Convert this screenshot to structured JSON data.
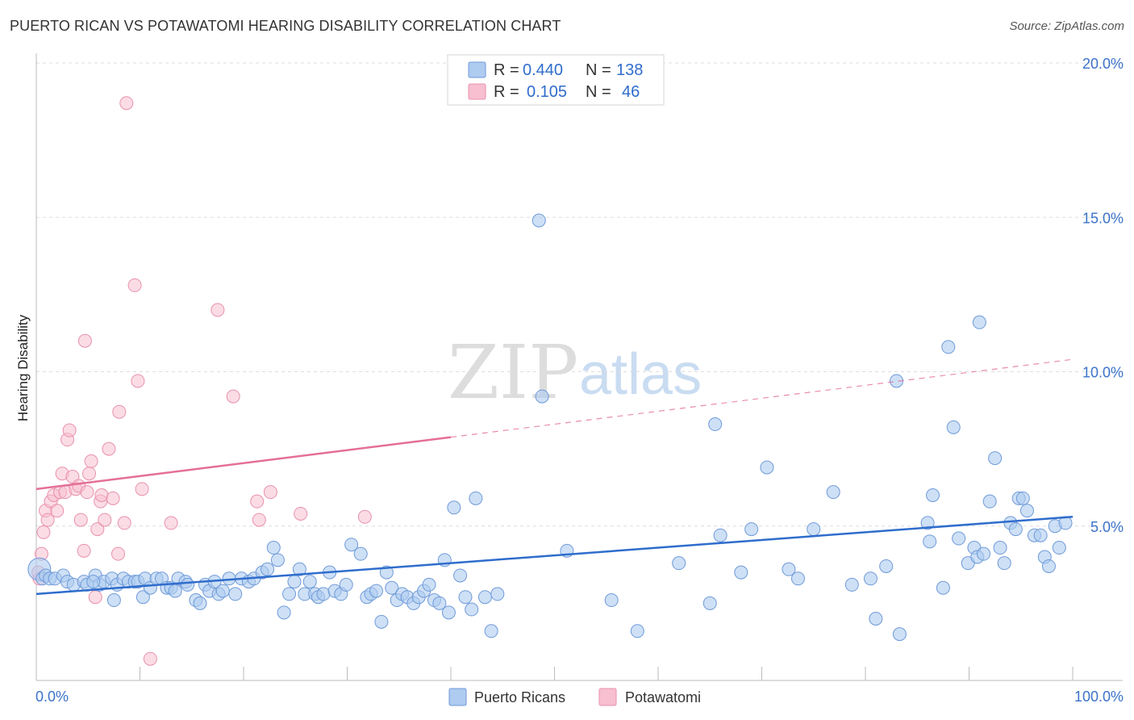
{
  "title": "PUERTO RICAN VS POTAWATOMI HEARING DISABILITY CORRELATION CHART",
  "source": "Source: ZipAtlas.com",
  "watermark": {
    "zip": "ZIP",
    "atlas": "atlas"
  },
  "colors": {
    "blue_fill": "#aecbf0",
    "blue_stroke": "#6f9ad8",
    "blue_line": "#2f6dcc",
    "pink_fill": "#f7bfd0",
    "pink_stroke": "#e891ad",
    "pink_line": "#e46f97",
    "grid": "#dddddd",
    "tick_label": "#3b73c8"
  },
  "legend": {
    "rows": [
      {
        "r_label": "R =",
        "r_value": "0.440",
        "n_label": "N =",
        "n_value": "138"
      },
      {
        "r_label": "R =",
        "r_value": "0.105",
        "n_label": "N =",
        "n_value": "46"
      }
    ]
  },
  "bottom_legend": [
    "Puerto Ricans",
    "Potawatomi"
  ],
  "chart_data": {
    "type": "scatter",
    "title": "PUERTO RICAN VS POTAWATOMI HEARING DISABILITY CORRELATION CHART",
    "xlabel": "",
    "ylabel": "Hearing Disability",
    "xlim": [
      0,
      100
    ],
    "ylim": [
      0,
      20
    ],
    "x_tick_labels": [
      "0.0%",
      "100.0%"
    ],
    "y_ticks": [
      5,
      10,
      15,
      20
    ],
    "y_tick_labels": [
      "5.0%",
      "10.0%",
      "15.0%",
      "20.0%"
    ],
    "grid": true,
    "legend_position": "top-center",
    "series": [
      {
        "name": "Puerto Ricans",
        "r": 0.44,
        "n": 138,
        "trend": {
          "x": [
            0,
            100
          ],
          "y": [
            2.8,
            5.3
          ],
          "dashed_from": null
        },
        "points": [
          [
            0.3,
            3.6
          ],
          [
            0.6,
            3.3
          ],
          [
            0.9,
            3.4
          ],
          [
            1.3,
            3.3
          ],
          [
            1.8,
            3.3
          ],
          [
            2.6,
            3.4
          ],
          [
            3.0,
            3.2
          ],
          [
            3.6,
            3.1
          ],
          [
            4.6,
            3.2
          ],
          [
            4.9,
            3.1
          ],
          [
            5.7,
            3.4
          ],
          [
            6.1,
            3.1
          ],
          [
            6.5,
            3.2
          ],
          [
            7.3,
            3.3
          ],
          [
            7.5,
            2.6
          ],
          [
            7.8,
            3.1
          ],
          [
            8.4,
            3.3
          ],
          [
            8.9,
            3.2
          ],
          [
            9.5,
            3.2
          ],
          [
            9.8,
            3.2
          ],
          [
            10.3,
            2.7
          ],
          [
            10.5,
            3.3
          ],
          [
            11.0,
            3.0
          ],
          [
            11.6,
            3.3
          ],
          [
            12.1,
            3.3
          ],
          [
            12.6,
            3.0
          ],
          [
            13.0,
            3.0
          ],
          [
            13.4,
            2.9
          ],
          [
            13.7,
            3.3
          ],
          [
            14.4,
            3.2
          ],
          [
            14.6,
            3.1
          ],
          [
            15.4,
            2.6
          ],
          [
            15.8,
            2.5
          ],
          [
            16.3,
            3.1
          ],
          [
            16.7,
            2.9
          ],
          [
            17.2,
            3.2
          ],
          [
            17.6,
            2.8
          ],
          [
            18.0,
            2.9
          ],
          [
            18.6,
            3.3
          ],
          [
            19.2,
            2.8
          ],
          [
            19.8,
            3.3
          ],
          [
            20.5,
            3.2
          ],
          [
            21.0,
            3.3
          ],
          [
            21.8,
            3.5
          ],
          [
            22.3,
            3.6
          ],
          [
            22.9,
            4.3
          ],
          [
            23.3,
            3.9
          ],
          [
            23.9,
            2.2
          ],
          [
            24.4,
            2.8
          ],
          [
            24.9,
            3.2
          ],
          [
            25.4,
            3.6
          ],
          [
            25.9,
            2.8
          ],
          [
            26.4,
            3.2
          ],
          [
            26.9,
            2.8
          ],
          [
            27.2,
            2.7
          ],
          [
            27.7,
            2.8
          ],
          [
            28.3,
            3.5
          ],
          [
            28.8,
            2.9
          ],
          [
            29.4,
            2.8
          ],
          [
            29.9,
            3.1
          ],
          [
            30.4,
            4.4
          ],
          [
            31.3,
            4.1
          ],
          [
            31.9,
            2.7
          ],
          [
            32.3,
            2.8
          ],
          [
            32.8,
            2.9
          ],
          [
            33.3,
            1.9
          ],
          [
            33.8,
            3.5
          ],
          [
            34.3,
            3.0
          ],
          [
            34.8,
            2.6
          ],
          [
            35.3,
            2.8
          ],
          [
            35.8,
            2.7
          ],
          [
            36.4,
            2.5
          ],
          [
            36.9,
            2.7
          ],
          [
            37.4,
            2.9
          ],
          [
            37.9,
            3.1
          ],
          [
            38.4,
            2.6
          ],
          [
            38.9,
            2.5
          ],
          [
            39.4,
            3.9
          ],
          [
            39.8,
            2.2
          ],
          [
            40.3,
            5.6
          ],
          [
            40.9,
            3.4
          ],
          [
            41.4,
            2.7
          ],
          [
            42.0,
            2.3
          ],
          [
            42.4,
            5.9
          ],
          [
            43.3,
            2.7
          ],
          [
            43.9,
            1.6
          ],
          [
            44.5,
            2.8
          ],
          [
            48.5,
            14.9
          ],
          [
            48.8,
            9.2
          ],
          [
            51.2,
            4.2
          ],
          [
            55.5,
            2.6
          ],
          [
            58.0,
            1.6
          ],
          [
            62.0,
            3.8
          ],
          [
            65.0,
            2.5
          ],
          [
            65.5,
            8.3
          ],
          [
            66.0,
            4.7
          ],
          [
            68.0,
            3.5
          ],
          [
            69.0,
            4.9
          ],
          [
            70.5,
            6.9
          ],
          [
            72.6,
            3.6
          ],
          [
            73.5,
            3.3
          ],
          [
            75.0,
            4.9
          ],
          [
            76.9,
            6.1
          ],
          [
            78.7,
            3.1
          ],
          [
            80.5,
            3.3
          ],
          [
            81.0,
            2.0
          ],
          [
            82.0,
            3.7
          ],
          [
            83.0,
            9.7
          ],
          [
            83.3,
            1.5
          ],
          [
            86.0,
            5.1
          ],
          [
            86.2,
            4.5
          ],
          [
            86.5,
            6.0
          ],
          [
            87.5,
            3.0
          ],
          [
            88.0,
            10.8
          ],
          [
            88.5,
            8.2
          ],
          [
            89.0,
            4.6
          ],
          [
            89.9,
            3.8
          ],
          [
            90.5,
            4.3
          ],
          [
            90.8,
            4.0
          ],
          [
            91.0,
            11.6
          ],
          [
            91.4,
            4.1
          ],
          [
            92.0,
            5.8
          ],
          [
            92.5,
            7.2
          ],
          [
            93.0,
            4.3
          ],
          [
            93.4,
            3.8
          ],
          [
            94.0,
            5.1
          ],
          [
            94.5,
            4.9
          ],
          [
            94.8,
            5.9
          ],
          [
            95.2,
            5.9
          ],
          [
            95.6,
            5.5
          ],
          [
            96.3,
            4.7
          ],
          [
            96.9,
            4.7
          ],
          [
            97.3,
            4.0
          ],
          [
            97.7,
            3.7
          ],
          [
            98.3,
            5.0
          ],
          [
            98.7,
            4.3
          ],
          [
            99.3,
            5.1
          ],
          [
            5.5,
            3.2
          ]
        ]
      },
      {
        "name": "Potawatomi",
        "r": 0.105,
        "n": 46,
        "trend": {
          "x": [
            0,
            100
          ],
          "y": [
            6.2,
            10.4
          ],
          "solid_until": 40
        },
        "points": [
          [
            0.3,
            3.3
          ],
          [
            0.5,
            4.1
          ],
          [
            0.7,
            4.8
          ],
          [
            0.9,
            5.5
          ],
          [
            1.1,
            5.2
          ],
          [
            1.4,
            5.8
          ],
          [
            1.7,
            6.0
          ],
          [
            2.0,
            5.5
          ],
          [
            2.3,
            6.1
          ],
          [
            2.5,
            6.7
          ],
          [
            2.8,
            6.1
          ],
          [
            3.0,
            7.8
          ],
          [
            3.2,
            8.1
          ],
          [
            3.5,
            6.6
          ],
          [
            3.8,
            6.2
          ],
          [
            4.1,
            6.3
          ],
          [
            4.3,
            5.2
          ],
          [
            4.6,
            4.2
          ],
          [
            4.7,
            11.0
          ],
          [
            4.9,
            6.1
          ],
          [
            5.1,
            6.7
          ],
          [
            5.3,
            7.1
          ],
          [
            5.7,
            2.7
          ],
          [
            5.9,
            4.9
          ],
          [
            6.2,
            5.8
          ],
          [
            6.3,
            6.0
          ],
          [
            6.6,
            5.2
          ],
          [
            7.0,
            7.5
          ],
          [
            7.4,
            5.9
          ],
          [
            7.9,
            4.1
          ],
          [
            8.0,
            8.7
          ],
          [
            8.5,
            5.1
          ],
          [
            8.7,
            18.7
          ],
          [
            9.5,
            12.8
          ],
          [
            9.8,
            9.7
          ],
          [
            10.2,
            6.2
          ],
          [
            11.0,
            0.7
          ],
          [
            13.0,
            5.1
          ],
          [
            17.5,
            12.0
          ],
          [
            19.0,
            9.2
          ],
          [
            21.3,
            5.8
          ],
          [
            21.5,
            5.2
          ],
          [
            22.6,
            6.1
          ],
          [
            25.5,
            5.4
          ],
          [
            31.7,
            5.3
          ],
          [
            0.2,
            3.5
          ]
        ]
      }
    ]
  }
}
